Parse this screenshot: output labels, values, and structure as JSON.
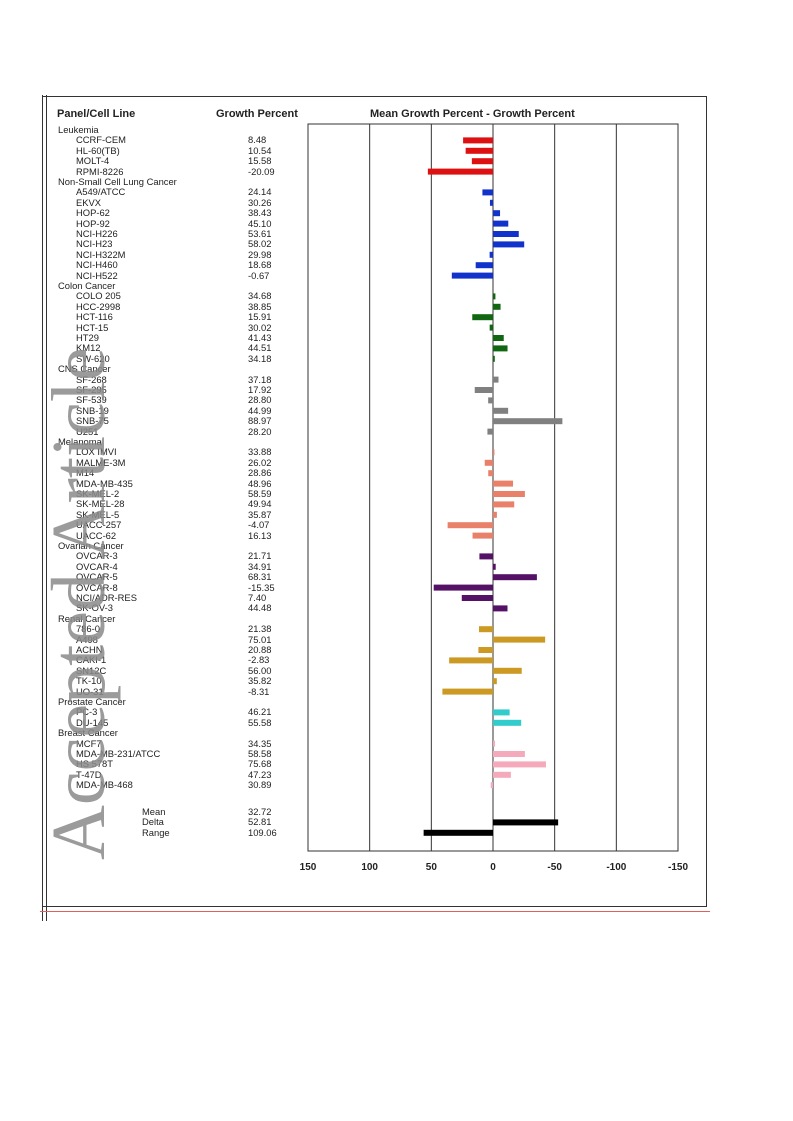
{
  "header": {
    "col1": "Panel/Cell Line",
    "col2": "Growth Percent",
    "col3": "Mean Growth Percent - Growth Percent"
  },
  "watermark": "Accepted Article",
  "chart_data": {
    "type": "bar",
    "orientation": "horizontal",
    "title": "Mean Growth Percent - Growth Percent",
    "xlim": [
      150,
      -150
    ],
    "x_ticks": [
      "150",
      "100",
      "50",
      "0",
      "-50",
      "-100",
      "-150"
    ],
    "grid": true,
    "mean_value": 32.72,
    "groups": [
      {
        "name": "Leukemia",
        "color": "#dd1111",
        "cells": [
          {
            "name": "CCRF-CEM",
            "growth": "8.48"
          },
          {
            "name": "HL-60(TB)",
            "growth": "10.54"
          },
          {
            "name": "MOLT-4",
            "growth": "15.58"
          },
          {
            "name": "RPMI-8226",
            "growth": "-20.09"
          }
        ]
      },
      {
        "name": "Non-Small Cell Lung Cancer",
        "color": "#1133cc",
        "cells": [
          {
            "name": "A549/ATCC",
            "growth": "24.14"
          },
          {
            "name": "EKVX",
            "growth": "30.26"
          },
          {
            "name": "HOP-62",
            "growth": "38.43"
          },
          {
            "name": "HOP-92",
            "growth": "45.10"
          },
          {
            "name": "NCI-H226",
            "growth": "53.61"
          },
          {
            "name": "NCI-H23",
            "growth": "58.02"
          },
          {
            "name": "NCI-H322M",
            "growth": "29.98"
          },
          {
            "name": "NCI-H460",
            "growth": "18.68"
          },
          {
            "name": "NCI-H522",
            "growth": "-0.67"
          }
        ]
      },
      {
        "name": "Colon Cancer",
        "color": "#116611",
        "cells": [
          {
            "name": "COLO 205",
            "growth": "34.68"
          },
          {
            "name": "HCC-2998",
            "growth": "38.85"
          },
          {
            "name": "HCT-116",
            "growth": "15.91"
          },
          {
            "name": "HCT-15",
            "growth": "30.02"
          },
          {
            "name": "HT29",
            "growth": "41.43"
          },
          {
            "name": "KM12",
            "growth": "44.51"
          },
          {
            "name": "SW-620",
            "growth": "34.18"
          }
        ]
      },
      {
        "name": "CNS Cancer",
        "color": "#808080",
        "cells": [
          {
            "name": "SF-268",
            "growth": "37.18"
          },
          {
            "name": "SF-295",
            "growth": "17.92"
          },
          {
            "name": "SF-539",
            "growth": "28.80"
          },
          {
            "name": "SNB-19",
            "growth": "44.99"
          },
          {
            "name": "SNB-75",
            "growth": "88.97"
          },
          {
            "name": "U251",
            "growth": "28.20"
          }
        ]
      },
      {
        "name": "Melanoma",
        "color": "#e8806a",
        "cells": [
          {
            "name": "LOX IMVI",
            "growth": "33.88"
          },
          {
            "name": "MALME-3M",
            "growth": "26.02"
          },
          {
            "name": "M14",
            "growth": "28.86"
          },
          {
            "name": "MDA-MB-435",
            "growth": "48.96"
          },
          {
            "name": "SK-MEL-2",
            "growth": "58.59"
          },
          {
            "name": "SK-MEL-28",
            "growth": "49.94"
          },
          {
            "name": "SK-MEL-5",
            "growth": "35.87"
          },
          {
            "name": "UACC-257",
            "growth": "-4.07"
          },
          {
            "name": "UACC-62",
            "growth": "16.13"
          }
        ]
      },
      {
        "name": "Ovarian Cancer",
        "color": "#551166",
        "cells": [
          {
            "name": "OVCAR-3",
            "growth": "21.71"
          },
          {
            "name": "OVCAR-4",
            "growth": "34.91"
          },
          {
            "name": "OVCAR-5",
            "growth": "68.31"
          },
          {
            "name": "OVCAR-8",
            "growth": "-15.35"
          },
          {
            "name": "NCI/ADR-RES",
            "growth": "7.40"
          },
          {
            "name": "SK-OV-3",
            "growth": "44.48"
          }
        ]
      },
      {
        "name": "Renal Cancer",
        "color": "#cc9922",
        "cells": [
          {
            "name": "786-0",
            "growth": "21.38"
          },
          {
            "name": "A498",
            "growth": "75.01"
          },
          {
            "name": "ACHN",
            "growth": "20.88"
          },
          {
            "name": "CAKI-1",
            "growth": "-2.83"
          },
          {
            "name": "SN12C",
            "growth": "56.00"
          },
          {
            "name": "TK-10",
            "growth": "35.82"
          },
          {
            "name": "UO-31",
            "growth": "-8.31"
          }
        ]
      },
      {
        "name": "Prostate Cancer",
        "color": "#33cccc",
        "cells": [
          {
            "name": "PC-3",
            "growth": "46.21"
          },
          {
            "name": "DU-145",
            "growth": "55.58"
          }
        ]
      },
      {
        "name": "Breast Cancer",
        "color": "#f4aabb",
        "cells": [
          {
            "name": "MCF7",
            "growth": "34.35"
          },
          {
            "name": "MDA-MB-231/ATCC",
            "growth": "58.58"
          },
          {
            "name": "HS 578T",
            "growth": "75.68"
          },
          {
            "name": "T-47D",
            "growth": "47.23"
          },
          {
            "name": "MDA-MB-468",
            "growth": "30.89"
          }
        ]
      }
    ],
    "summary": [
      {
        "name": "Mean",
        "value": "32.72",
        "bar_value": 0
      },
      {
        "name": "Delta",
        "value": "52.81",
        "bar_value": -52.81
      },
      {
        "name": "Range",
        "value": "109.06",
        "bar_value": 56.25
      }
    ],
    "summary_color": "#000000"
  }
}
